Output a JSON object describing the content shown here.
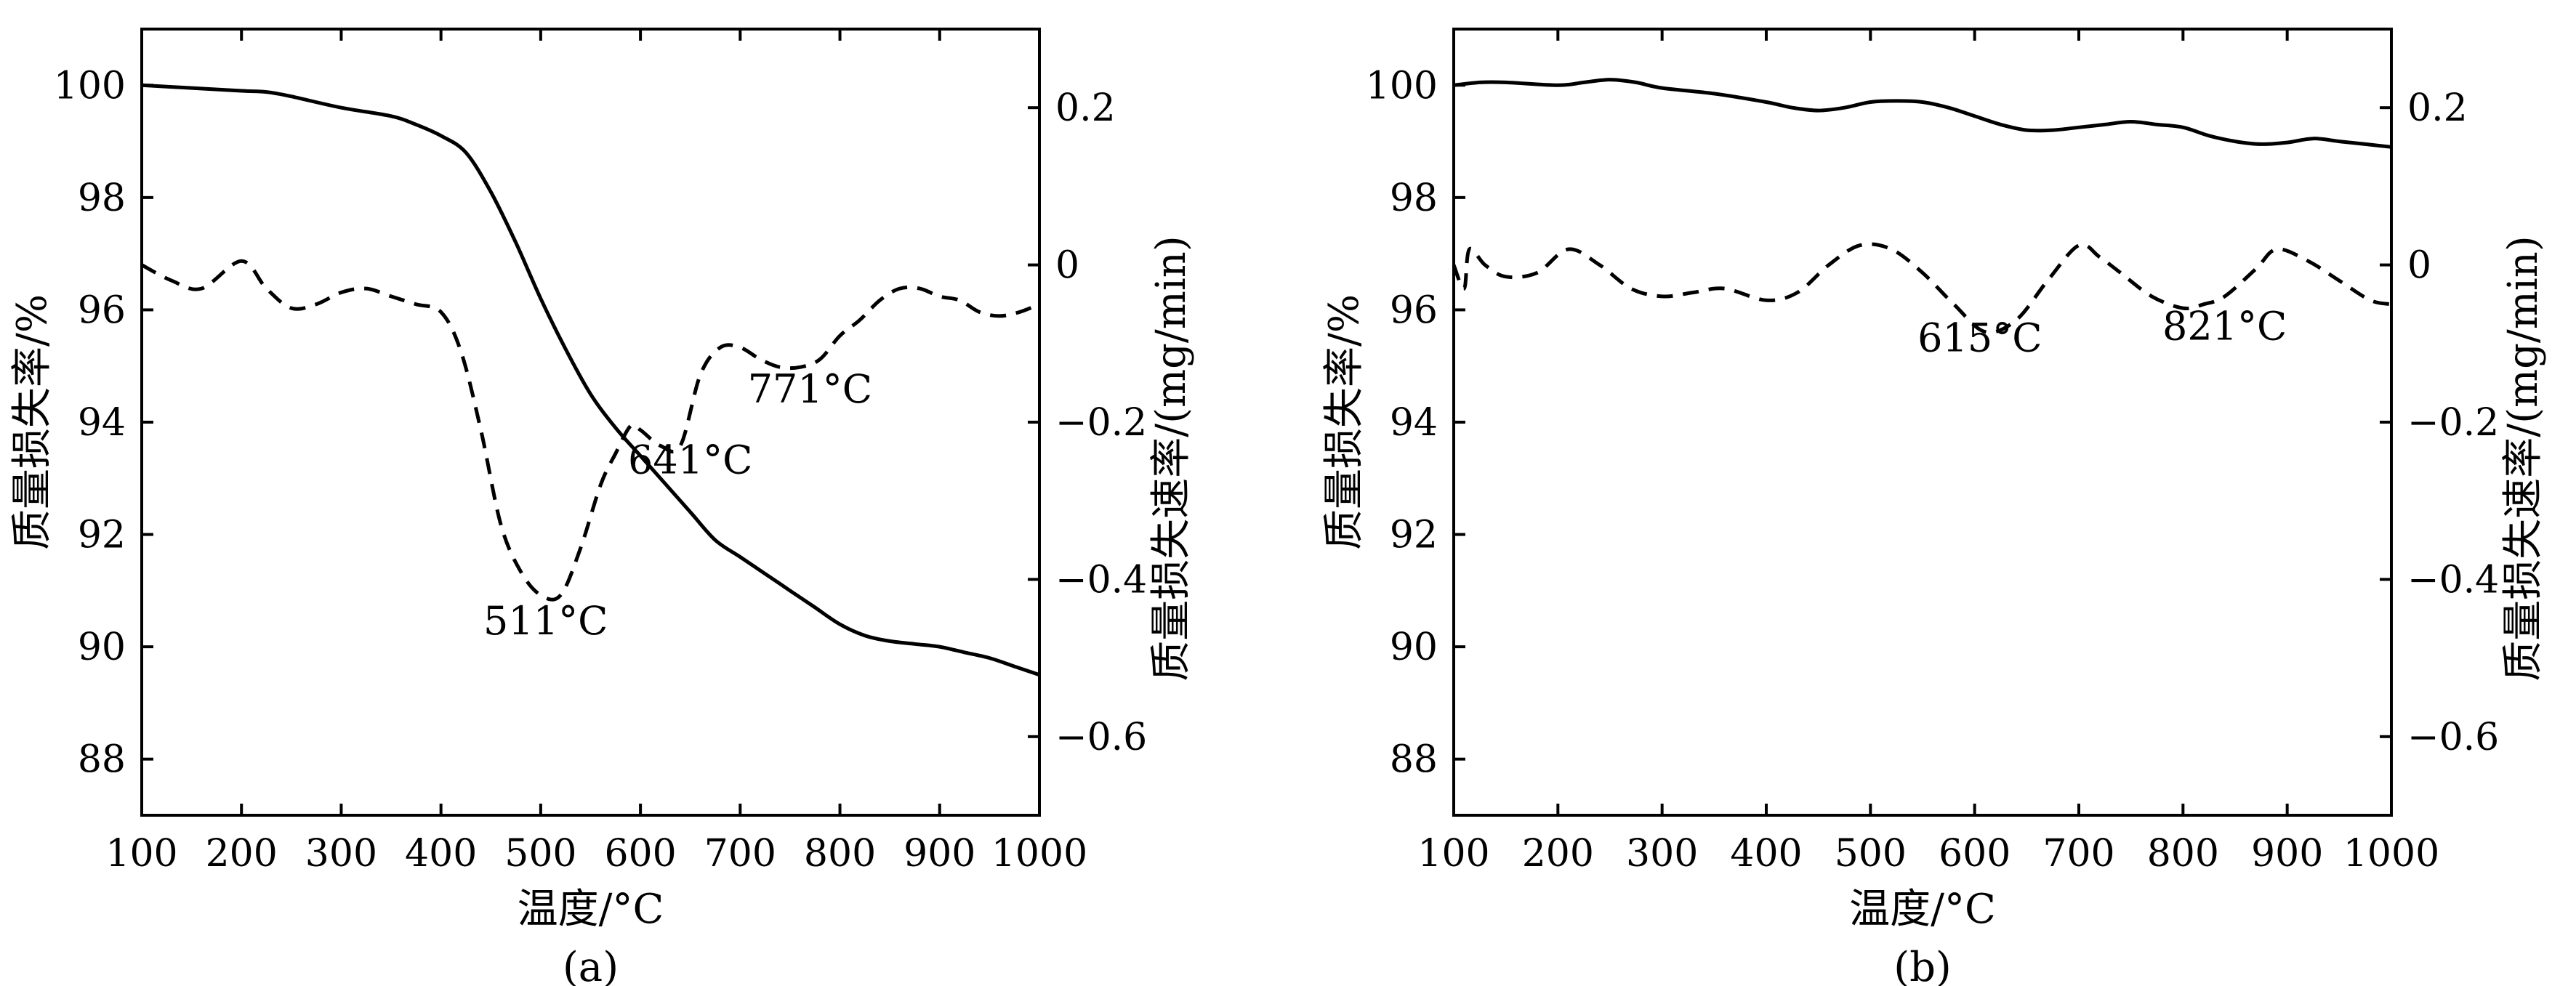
{
  "chart_data": [
    {
      "type": "line",
      "panel_label": "(a)",
      "xlabel": "温度/°C",
      "ylabel": "质量损失率/%",
      "y2label": "质量损失速率/(mg/min)",
      "xlim": [
        100,
        1000
      ],
      "ylim": [
        87,
        101
      ],
      "y2lim": [
        -0.7,
        0.3
      ],
      "xticks": [
        "100",
        "200",
        "300",
        "400",
        "500",
        "600",
        "700",
        "800",
        "900",
        "1000"
      ],
      "yticks": [
        "88",
        "90",
        "92",
        "94",
        "96",
        "98",
        "100"
      ],
      "y2ticks": [
        "−0.6",
        "−0.4",
        "−0.2",
        "0",
        "0.2"
      ],
      "grid": false,
      "series": [
        {
          "style": "solid",
          "axis": "left",
          "x": [
            100,
            150,
            200,
            225,
            250,
            300,
            350,
            375,
            400,
            425,
            450,
            475,
            500,
            525,
            550,
            575,
            600,
            625,
            650,
            675,
            700,
            725,
            750,
            775,
            800,
            825,
            850,
            875,
            900,
            925,
            950,
            975,
            1000
          ],
          "y": [
            100,
            99.95,
            99.9,
            99.88,
            99.8,
            99.6,
            99.45,
            99.3,
            99.1,
            98.8,
            98.1,
            97.2,
            96.2,
            95.3,
            94.5,
            93.9,
            93.4,
            92.9,
            92.4,
            91.9,
            91.6,
            91.3,
            91.0,
            90.7,
            90.4,
            90.2,
            90.1,
            90.05,
            90.0,
            89.9,
            89.8,
            89.65,
            89.5
          ]
        },
        {
          "style": "dashed",
          "axis": "right",
          "x": [
            100,
            130,
            160,
            200,
            225,
            250,
            275,
            300,
            325,
            350,
            375,
            400,
            420,
            440,
            460,
            480,
            500,
            520,
            540,
            560,
            575,
            590,
            600,
            620,
            640,
            660,
            680,
            700,
            720,
            740,
            760,
            780,
            800,
            820,
            840,
            860,
            880,
            900,
            920,
            940,
            960,
            980,
            1000
          ],
          "y": [
            0.0,
            -0.02,
            -0.03,
            0.005,
            -0.03,
            -0.055,
            -0.05,
            -0.035,
            -0.03,
            -0.04,
            -0.05,
            -0.06,
            -0.11,
            -0.21,
            -0.33,
            -0.39,
            -0.42,
            -0.42,
            -0.36,
            -0.28,
            -0.24,
            -0.205,
            -0.21,
            -0.23,
            -0.23,
            -0.14,
            -0.105,
            -0.105,
            -0.12,
            -0.13,
            -0.13,
            -0.12,
            -0.09,
            -0.07,
            -0.045,
            -0.03,
            -0.03,
            -0.04,
            -0.045,
            -0.06,
            -0.065,
            -0.06,
            -0.05
          ]
        }
      ],
      "annotations": [
        {
          "text": "511°C",
          "x": 505,
          "y2": -0.47
        },
        {
          "text": "641°C",
          "x": 650,
          "y2": -0.265
        },
        {
          "text": "771°C",
          "x": 770,
          "y2": -0.175
        }
      ]
    },
    {
      "type": "line",
      "panel_label": "(b)",
      "xlabel": "温度/°C",
      "ylabel": "质量损失率/%",
      "y2label": "质量损失速率/(mg/min)",
      "xlim": [
        100,
        1000
      ],
      "ylim": [
        87,
        101
      ],
      "y2lim": [
        -0.7,
        0.3
      ],
      "xticks": [
        "100",
        "200",
        "300",
        "400",
        "500",
        "600",
        "700",
        "800",
        "900",
        "1000"
      ],
      "yticks": [
        "88",
        "90",
        "92",
        "94",
        "96",
        "98",
        "100"
      ],
      "y2ticks": [
        "−0.6",
        "−0.4",
        "−0.2",
        "0",
        "0.2"
      ],
      "grid": false,
      "series": [
        {
          "style": "solid",
          "axis": "left",
          "x": [
            100,
            125,
            150,
            200,
            225,
            250,
            275,
            300,
            350,
            400,
            425,
            450,
            475,
            500,
            525,
            550,
            575,
            600,
            625,
            650,
            675,
            700,
            725,
            750,
            775,
            800,
            825,
            850,
            875,
            900,
            925,
            950,
            975,
            1000
          ],
          "y": [
            100.0,
            100.05,
            100.05,
            100.0,
            100.05,
            100.1,
            100.05,
            99.95,
            99.85,
            99.7,
            99.6,
            99.55,
            99.6,
            99.7,
            99.72,
            99.7,
            99.6,
            99.45,
            99.3,
            99.2,
            99.2,
            99.25,
            99.3,
            99.35,
            99.3,
            99.25,
            99.1,
            99.0,
            98.95,
            98.98,
            99.05,
            99.0,
            98.95,
            98.9
          ]
        },
        {
          "style": "dashed",
          "axis": "right",
          "x": [
            100,
            110,
            115,
            130,
            150,
            180,
            210,
            240,
            270,
            300,
            330,
            360,
            400,
            430,
            460,
            490,
            520,
            550,
            580,
            610,
            640,
            670,
            700,
            720,
            740,
            770,
            800,
            820,
            840,
            870,
            890,
            920,
            950,
            980,
            1000
          ],
          "y": [
            0.0,
            -0.03,
            0.02,
            0.0,
            -0.015,
            -0.01,
            0.02,
            0.0,
            -0.03,
            -0.04,
            -0.035,
            -0.03,
            -0.045,
            -0.035,
            0.0,
            0.025,
            0.02,
            -0.01,
            -0.05,
            -0.085,
            -0.07,
            -0.02,
            0.025,
            0.01,
            -0.01,
            -0.04,
            -0.055,
            -0.05,
            -0.04,
            -0.005,
            0.02,
            0.005,
            -0.02,
            -0.045,
            -0.05
          ]
        }
      ],
      "annotations": [
        {
          "text": "615°C",
          "x": 605,
          "y2": -0.11
        },
        {
          "text": "821°C",
          "x": 840,
          "y2": -0.095
        }
      ]
    }
  ]
}
